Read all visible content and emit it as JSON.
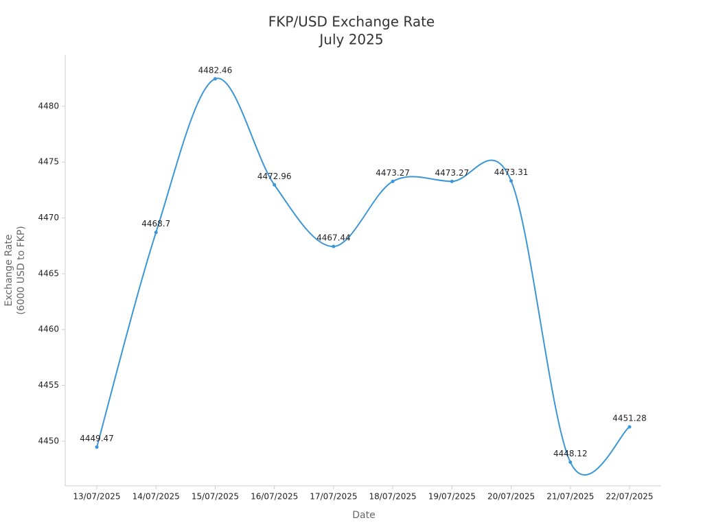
{
  "chart_data": {
    "type": "line",
    "title": [
      "FKP/USD Exchange Rate",
      "July 2025"
    ],
    "x_label": "Date",
    "y_label": [
      "Exchange Rate",
      "(6000 USD to FKP)"
    ],
    "categories": [
      "13/07/2025",
      "14/07/2025",
      "15/07/2025",
      "16/07/2025",
      "17/07/2025",
      "18/07/2025",
      "19/07/2025",
      "20/07/2025",
      "21/07/2025",
      "22/07/2025"
    ],
    "series": [
      {
        "name": "FKP/USD",
        "color": "#3a96d6",
        "values": [
          4449.47,
          4468.7,
          4482.46,
          4472.96,
          4467.44,
          4473.27,
          4473.27,
          4473.31,
          4448.12,
          4451.28
        ]
      }
    ],
    "ylim": [
      4446,
      4484.6
    ],
    "yticks": [
      4450,
      4455,
      4460,
      4465,
      4470,
      4475,
      4480
    ],
    "grid": false
  }
}
